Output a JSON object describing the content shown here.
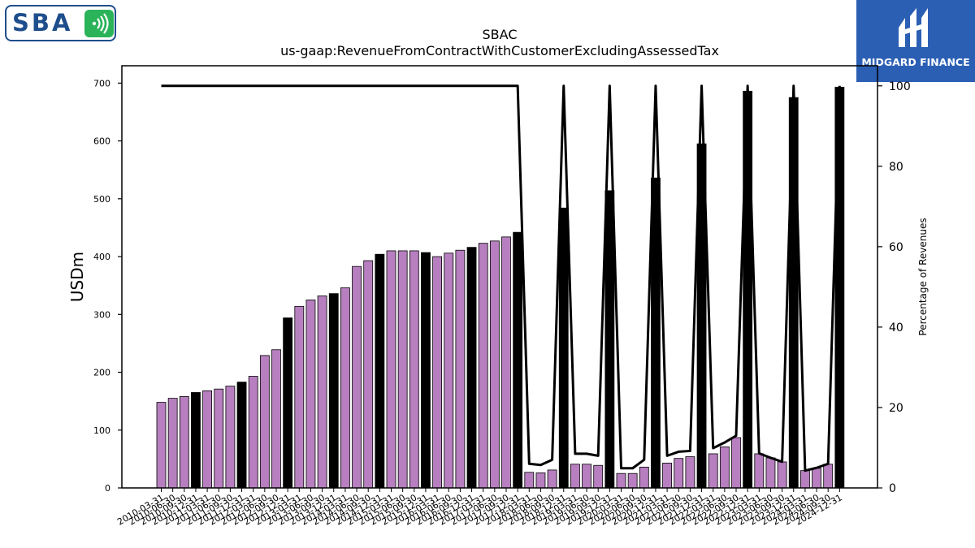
{
  "logos": {
    "left_text": "SBA",
    "right_text": "MIDGARD FINANCE"
  },
  "colors": {
    "bar_default": "#b77fbf",
    "bar_highlight": "#000000",
    "line": "#000000",
    "logo_blue": "#1f4e8c",
    "logo_green": "#2bb35a",
    "midgard_bg": "#2b5fb4"
  },
  "chart_data": {
    "type": "bar",
    "title": "SBAC",
    "subtitle": "us-gaap:RevenueFromContractWithCustomerExcludingAssessedTax",
    "ylabel": "USDm",
    "y2label": "Percentage of Revenues",
    "ylim": [
      0,
      730
    ],
    "y2lim": [
      0,
      105
    ],
    "yticks": [
      0,
      100,
      200,
      300,
      400,
      500,
      600,
      700
    ],
    "y2ticks": [
      0,
      20,
      40,
      60,
      80,
      100
    ],
    "grid": false,
    "legend": "none",
    "x_tick_labels": [
      "2010-03-31",
      "2010-06-30",
      "2010-09-30",
      "2010-12-31",
      "2011-03-31",
      "2011-06-30",
      "2011-09-30",
      "2011-12-31",
      "2012-03-31",
      "2012-06-30",
      "2012-09-30",
      "2012-12-31",
      "2013-03-31",
      "2013-06-30",
      "2013-09-30",
      "2013-12-31",
      "2014-03-31",
      "2014-06-30",
      "2014-09-30",
      "2014-12-31",
      "2015-03-31",
      "2015-06-30",
      "2015-09-30",
      "2015-12-31",
      "2016-03-31",
      "2016-06-30",
      "2016-09-30",
      "2016-12-31",
      "2017-03-31",
      "2017-06-30",
      "2017-09-30",
      "2017-12-31",
      "2018-03-31",
      "2018-06-30",
      "2018-09-30",
      "2018-12-31",
      "2019-03-31",
      "2019-06-30",
      "2019-09-30",
      "2019-12-31",
      "2020-03-31",
      "2020-06-30",
      "2020-09-30",
      "2020-12-31",
      "2021-03-31",
      "2021-06-30",
      "2021-09-30",
      "2021-12-31",
      "2022-03-31",
      "2022-06-30",
      "2022-09-30",
      "2022-12-31",
      "2023-03-31",
      "2023-06-30",
      "2023-09-30",
      "2023-12-31",
      "2024-03-31",
      "2024-06-30",
      "2024-09-30",
      "2024-12-31"
    ],
    "values": [
      148,
      155,
      158,
      165,
      168,
      171,
      176,
      183,
      193,
      229,
      239,
      294,
      314,
      325,
      332,
      336,
      346,
      383,
      393,
      404,
      410,
      410,
      410,
      407,
      400,
      406,
      411,
      416,
      423,
      427,
      434,
      442,
      27,
      26,
      31,
      484,
      41,
      41,
      39,
      514,
      25,
      25,
      36,
      536,
      43,
      51,
      54,
      595,
      59,
      71,
      87,
      686,
      59,
      52,
      45,
      675,
      30,
      34,
      41,
      693
    ],
    "highlight": [
      false,
      false,
      false,
      true,
      false,
      false,
      false,
      true,
      false,
      false,
      false,
      true,
      false,
      false,
      false,
      true,
      false,
      false,
      false,
      true,
      false,
      false,
      false,
      true,
      false,
      false,
      false,
      true,
      false,
      false,
      false,
      true,
      false,
      false,
      false,
      true,
      false,
      false,
      false,
      true,
      false,
      false,
      false,
      true,
      false,
      false,
      false,
      true,
      false,
      false,
      false,
      true,
      false,
      false,
      false,
      true,
      false,
      false,
      false,
      true
    ],
    "percentage_line": [
      100,
      100,
      100,
      100,
      100,
      100,
      100,
      100,
      100,
      100,
      100,
      100,
      100,
      100,
      100,
      100,
      100,
      100,
      100,
      100,
      100,
      100,
      100,
      100,
      100,
      100,
      100,
      100,
      100,
      100,
      100,
      100,
      6,
      5.7,
      7,
      100,
      8.5,
      8.5,
      8,
      100,
      4.9,
      4.9,
      7,
      100,
      8,
      9,
      9.2,
      100,
      9.9,
      11.3,
      13,
      100,
      8.6,
      7.5,
      6.5,
      100,
      4.3,
      5,
      6,
      100
    ]
  }
}
